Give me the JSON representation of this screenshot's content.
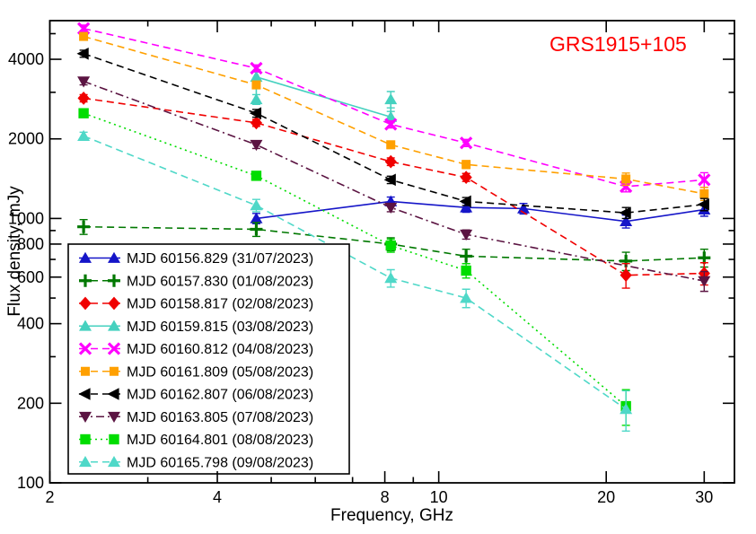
{
  "title": {
    "text": "GRS1915+105",
    "color": "#ff0000"
  },
  "chart_data": {
    "type": "line",
    "x_scale": "log",
    "y_scale": "log",
    "xlabel": "Frequency, GHz",
    "ylabel": "Flux density, mJy",
    "xlim": [
      2,
      34
    ],
    "ylim": [
      100,
      5600
    ],
    "x_ticks_major": [
      2,
      4,
      8,
      10,
      20,
      30
    ],
    "x_ticks_minor": [
      3,
      5,
      6,
      7,
      9
    ],
    "y_ticks_major": [
      100,
      200,
      400,
      600,
      800,
      1000,
      2000,
      4000
    ],
    "y_ticks_minor": [
      300,
      500,
      700,
      900,
      3000,
      5000
    ],
    "grid": false,
    "legend_position": "lower-left",
    "series": [
      {
        "label": "MJD 60156.829 (31/07/2023)",
        "color": "#1515c8",
        "line": "solid",
        "marker": "triangle-up",
        "points": [
          [
            4.7,
            1000,
            45
          ],
          [
            8.2,
            1160,
            45
          ],
          [
            11.2,
            1100,
            45
          ],
          [
            14.2,
            1090,
            50
          ],
          [
            21.7,
            975,
            55
          ],
          [
            30,
            1080,
            60
          ]
        ]
      },
      {
        "label": "MJD 60157.830 (01/08/2023)",
        "color": "#007800",
        "line": "dashed",
        "marker": "plus",
        "points": [
          [
            2.3,
            930,
            60
          ],
          [
            4.7,
            910,
            55
          ],
          [
            8.2,
            800,
            45
          ],
          [
            11.2,
            720,
            45
          ],
          [
            21.7,
            690,
            55
          ],
          [
            30,
            710,
            55
          ]
        ]
      },
      {
        "label": "MJD 60158.817 (02/08/2023)",
        "color": "#f00000",
        "line": "dashed",
        "marker": "diamond",
        "points": [
          [
            2.3,
            2850,
            90
          ],
          [
            4.7,
            2300,
            70
          ],
          [
            8.2,
            1640,
            55
          ],
          [
            11.2,
            1430,
            50
          ],
          [
            21.7,
            610,
            65
          ],
          [
            30,
            620,
            60
          ]
        ]
      },
      {
        "label": "MJD 60159.815 (03/08/2023)",
        "color": "#45d1bf",
        "line": "solid",
        "marker": "triangle-up",
        "points": [
          [
            4.7,
            2820,
            120
          ],
          [
            4.7,
            3430,
            150
          ],
          [
            8.2,
            2420,
            120
          ],
          [
            8.2,
            2820,
            200
          ]
        ]
      },
      {
        "label": "MJD 60160.812 (04/08/2023)",
        "color": "#ff00ff",
        "line": "dashed",
        "marker": "x",
        "points": [
          [
            2.3,
            5230,
            160
          ],
          [
            4.7,
            3700,
            110
          ],
          [
            8.2,
            2270,
            70
          ],
          [
            11.2,
            1930,
            60
          ],
          [
            21.7,
            1320,
            60
          ],
          [
            30,
            1400,
            90
          ]
        ]
      },
      {
        "label": "MJD 60161.809 (05/08/2023)",
        "color": "#ffa000",
        "line": "dashed",
        "marker": "square-small",
        "points": [
          [
            2.3,
            4880,
            140
          ],
          [
            4.7,
            3200,
            100
          ],
          [
            8.2,
            1900,
            60
          ],
          [
            11.2,
            1600,
            55
          ],
          [
            21.7,
            1410,
            75
          ],
          [
            30,
            1240,
            70
          ]
        ]
      },
      {
        "label": "MJD 60162.807 (06/08/2023)",
        "color": "#000000",
        "line": "dashed",
        "marker": "triangle-left",
        "points": [
          [
            2.3,
            4200,
            130
          ],
          [
            4.7,
            2500,
            85
          ],
          [
            8.2,
            1400,
            45
          ],
          [
            11.2,
            1160,
            40
          ],
          [
            21.7,
            1050,
            50
          ],
          [
            30,
            1130,
            60
          ]
        ]
      },
      {
        "label": "MJD 60163.805 (07/08/2023)",
        "color": "#5b1442",
        "line": "dashdot",
        "marker": "triangle-down",
        "points": [
          [
            2.3,
            3300,
            100
          ],
          [
            4.7,
            1900,
            60
          ],
          [
            8.2,
            1100,
            40
          ],
          [
            11.2,
            870,
            35
          ],
          [
            30,
            580,
            50
          ]
        ]
      },
      {
        "label": "MJD 60164.801 (08/08/2023)",
        "color": "#00dd00",
        "line": "dotted",
        "marker": "square",
        "points": [
          [
            2.3,
            2500,
            80
          ],
          [
            4.7,
            1450,
            50
          ],
          [
            8.2,
            790,
            45
          ],
          [
            11.2,
            635,
            40
          ],
          [
            21.7,
            195,
            30
          ]
        ]
      },
      {
        "label": "MJD 60165.798 (09/08/2023)",
        "color": "#4fd8c8",
        "line": "dashed",
        "marker": "triangle-up",
        "points": [
          [
            2.3,
            2050,
            70
          ],
          [
            4.7,
            1120,
            60
          ],
          [
            8.2,
            595,
            45
          ],
          [
            11.2,
            500,
            40
          ],
          [
            21.7,
            190,
            33
          ]
        ]
      }
    ]
  }
}
